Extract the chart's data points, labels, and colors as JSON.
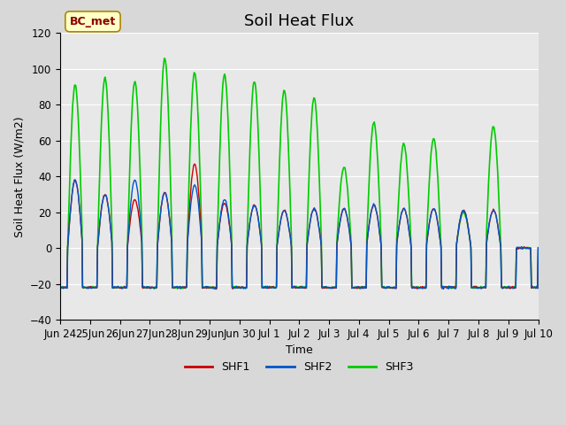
{
  "title": "Soil Heat Flux",
  "ylabel": "Soil Heat Flux (W/m2)",
  "xlabel": "Time",
  "ylim": [
    -40,
    120
  ],
  "yticks": [
    -40,
    -20,
    0,
    20,
    40,
    60,
    80,
    100,
    120
  ],
  "fig_bg_color": "#d8d8d8",
  "plot_bg_color": "#e8e8e8",
  "line_colors": [
    "#cc0000",
    "#0055cc",
    "#00cc00"
  ],
  "line_labels": [
    "SHF1",
    "SHF2",
    "SHF3"
  ],
  "annotation_text": "BC_met",
  "annotation_color": "#8b0000",
  "annotation_bg": "#ffffc8",
  "title_fontsize": 13,
  "label_fontsize": 9,
  "tick_fontsize": 8.5,
  "legend_fontsize": 9,
  "shf3_amps": [
    91,
    95,
    93,
    106,
    98,
    97,
    93,
    88,
    84,
    45,
    70,
    58,
    61,
    20,
    68,
    0
  ],
  "shf1_amps": [
    38,
    30,
    27,
    31,
    47,
    25,
    24,
    21,
    22,
    22,
    24,
    22,
    22,
    21,
    21,
    0
  ],
  "shf2_amps": [
    38,
    30,
    38,
    31,
    35,
    27,
    24,
    21,
    22,
    22,
    24,
    22,
    22,
    21,
    21,
    0
  ],
  "night_level": -22,
  "grid_colors": [
    "#e8e8e8",
    "#d8d8d8"
  ]
}
